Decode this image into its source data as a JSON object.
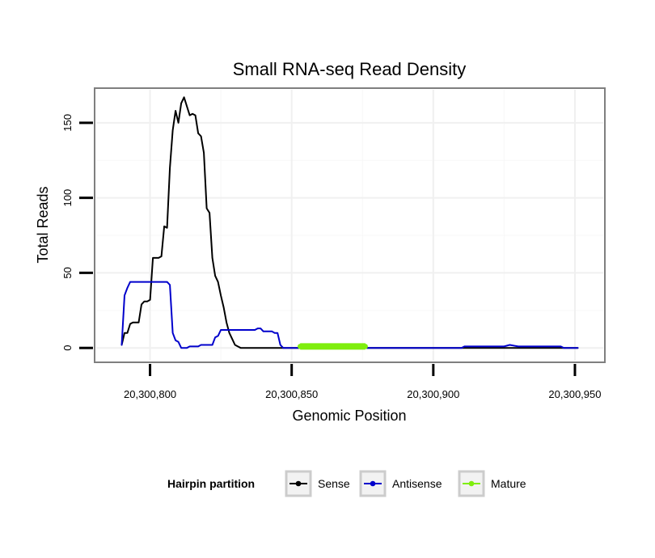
{
  "chart_data": {
    "type": "line",
    "title": "Small RNA-seq Read Density",
    "xlabel": "Genomic Position",
    "ylabel": "Total Reads",
    "xlim": [
      20300781,
      20300960
    ],
    "ylim": [
      -8.5,
      172
    ],
    "x_ticks": [
      {
        "value": 20300800,
        "label": "20,300,800"
      },
      {
        "value": 20300850,
        "label": "20,300,850"
      },
      {
        "value": 20300900,
        "label": "20,300,900"
      },
      {
        "value": 20300950,
        "label": "20,300,950"
      }
    ],
    "y_ticks": [
      {
        "value": 0,
        "label": "0"
      },
      {
        "value": 50,
        "label": "50"
      },
      {
        "value": 100,
        "label": "100"
      },
      {
        "value": 150,
        "label": "150"
      }
    ],
    "legend": {
      "title": "Hairpin partition",
      "position": "bottom",
      "entries": [
        {
          "name": "Sense",
          "color": "#000000"
        },
        {
          "name": "Antisense",
          "color": "#0000cc"
        },
        {
          "name": "Mature",
          "color": "#7fee0d"
        }
      ]
    },
    "series": [
      {
        "name": "Sense",
        "color": "#000000",
        "x": [
          20300790,
          20300791,
          20300792,
          20300793,
          20300794,
          20300795,
          20300796,
          20300797,
          20300798,
          20300799,
          20300800,
          20300801,
          20300802,
          20300803,
          20300804,
          20300805,
          20300806,
          20300807,
          20300808,
          20300809,
          20300810,
          20300811,
          20300812,
          20300813,
          20300814,
          20300815,
          20300816,
          20300817,
          20300818,
          20300819,
          20300820,
          20300821,
          20300822,
          20300823,
          20300824,
          20300825,
          20300826,
          20300827,
          20300828,
          20300829,
          20300830,
          20300831,
          20300832,
          20300833,
          20300834,
          20300835,
          20300836,
          20300837,
          20300838,
          20300839,
          20300840,
          20300841,
          20300842,
          20300843,
          20300844,
          20300845,
          20300846,
          20300847,
          20300848,
          20300849,
          20300850,
          20300875,
          20300900,
          20300925,
          20300951
        ],
        "values": [
          2,
          10,
          10,
          16,
          17,
          17,
          17,
          29,
          31,
          31,
          32,
          60,
          60,
          60,
          61,
          81,
          80,
          120,
          145,
          158,
          150,
          163,
          167,
          161,
          155,
          156,
          155,
          143,
          141,
          130,
          93,
          90,
          60,
          48,
          44,
          35,
          27,
          17,
          10,
          6,
          2,
          1,
          0,
          0,
          0,
          0,
          0,
          0,
          0,
          0,
          0,
          0,
          0,
          0,
          0,
          0,
          0,
          0,
          0,
          0,
          0,
          0,
          0,
          0,
          0
        ]
      },
      {
        "name": "Antisense",
        "color": "#0000cc",
        "x": [
          20300790,
          20300791,
          20300792,
          20300793,
          20300794,
          20300795,
          20300796,
          20300797,
          20300798,
          20300799,
          20300800,
          20300801,
          20300802,
          20300803,
          20300804,
          20300805,
          20300806,
          20300807,
          20300808,
          20300809,
          20300810,
          20300811,
          20300812,
          20300813,
          20300814,
          20300815,
          20300816,
          20300817,
          20300818,
          20300819,
          20300820,
          20300821,
          20300822,
          20300823,
          20300824,
          20300825,
          20300826,
          20300827,
          20300828,
          20300829,
          20300830,
          20300831,
          20300832,
          20300833,
          20300834,
          20300835,
          20300836,
          20300837,
          20300838,
          20300839,
          20300840,
          20300841,
          20300842,
          20300843,
          20300844,
          20300845,
          20300846,
          20300847,
          20300848,
          20300849,
          20300850,
          20300875,
          20300910,
          20300911,
          20300925,
          20300927,
          20300930,
          20300945,
          20300946,
          20300951
        ],
        "values": [
          2,
          35,
          40,
          44,
          44,
          44,
          44,
          44,
          44,
          44,
          44,
          44,
          44,
          44,
          44,
          44,
          44,
          42,
          10,
          5,
          4,
          0,
          0,
          0,
          1,
          1,
          1,
          1,
          2,
          2,
          2,
          2,
          2,
          7,
          8,
          12,
          12,
          12,
          12,
          12,
          12,
          12,
          12,
          12,
          12,
          12,
          12,
          12,
          13,
          13,
          11,
          11,
          11,
          11,
          10,
          10,
          2,
          0,
          0,
          0,
          0,
          0,
          0,
          1,
          1,
          2,
          1,
          1,
          0,
          0
        ]
      },
      {
        "name": "Mature",
        "color": "#7fee0d",
        "x": [
          20300853,
          20300854,
          20300855,
          20300856,
          20300857,
          20300858,
          20300859,
          20300860,
          20300861,
          20300862,
          20300863,
          20300864,
          20300865,
          20300866,
          20300867,
          20300868,
          20300869,
          20300870,
          20300871,
          20300872,
          20300873,
          20300874,
          20300875,
          20300876
        ],
        "values": [
          1,
          1,
          1,
          1,
          1,
          1,
          1,
          1,
          1,
          1,
          1,
          1,
          1,
          1,
          1,
          1,
          1,
          1,
          1,
          1,
          1,
          1,
          1,
          1
        ]
      }
    ]
  }
}
